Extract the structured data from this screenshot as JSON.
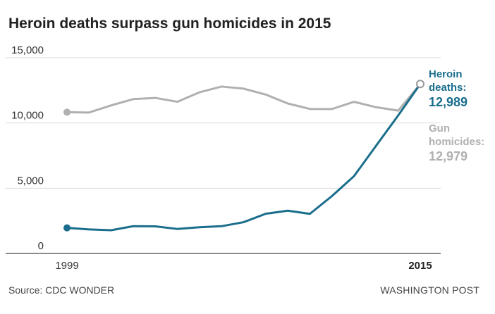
{
  "chart_data": {
    "type": "line",
    "title": "Heroin deaths surpass gun homicides in 2015",
    "xlabel": "",
    "ylabel": "",
    "x": [
      1999,
      2000,
      2001,
      2002,
      2003,
      2004,
      2005,
      2006,
      2007,
      2008,
      2009,
      2010,
      2011,
      2012,
      2013,
      2014,
      2015
    ],
    "x_tick_labels": [
      "1999",
      "2015"
    ],
    "ylim": [
      0,
      15000
    ],
    "y_ticks": [
      0,
      5000,
      10000,
      15000
    ],
    "y_tick_labels": [
      "0",
      "5,000",
      "10,000",
      "15,000"
    ],
    "grid": true,
    "series": [
      {
        "name": "Heroin deaths",
        "color": "#1a6e8c",
        "label_lines": [
          "Heroin",
          "deaths:"
        ],
        "value_label": "12,989",
        "values": [
          1960,
          1842,
          1779,
          2089,
          2080,
          1878,
          2009,
          2088,
          2399,
          3041,
          3278,
          3036,
          4397,
          5925,
          8257,
          10574,
          12989
        ]
      },
      {
        "name": "Gun homicides",
        "color": "#b0b0b0",
        "label_lines": [
          "Gun",
          "homicides:"
        ],
        "value_label": "12,979",
        "values": [
          10828,
          10801,
          11348,
          11829,
          11920,
          11624,
          12352,
          12791,
          12632,
          12179,
          11493,
          11078,
          11068,
          11622,
          11208,
          10945,
          12979
        ]
      }
    ],
    "source": "Source: CDC WONDER",
    "credit": "WASHINGTON POST"
  }
}
